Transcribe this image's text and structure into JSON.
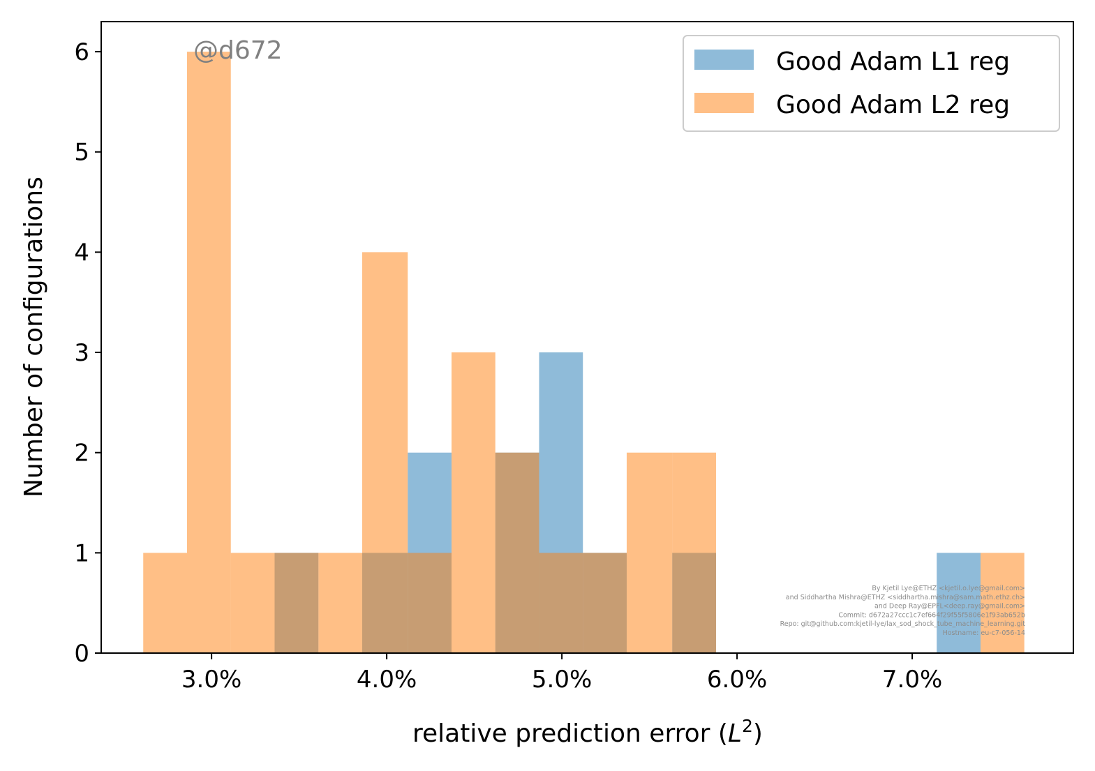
{
  "chart_data": {
    "type": "bar",
    "xlabel_text": "relative prediction error (",
    "xlabel_math": "L",
    "xlabel_sup": "2",
    "xlabel_close": ")",
    "ylabel": "Number of configurations",
    "xlim": [
      0.0237,
      0.0792
    ],
    "ylim": [
      0,
      6.3
    ],
    "xticks": [
      {
        "value": 0.03,
        "label": "3.0%"
      },
      {
        "value": 0.04,
        "label": "4.0%"
      },
      {
        "value": 0.05,
        "label": "5.0%"
      },
      {
        "value": 0.06,
        "label": "6.0%"
      },
      {
        "value": 0.07,
        "label": "7.0%"
      }
    ],
    "yticks": [
      0,
      1,
      2,
      3,
      4,
      5,
      6
    ],
    "grid": false,
    "legend_position": "top-right",
    "series": [
      {
        "name": "Good Adam L1 reg",
        "color": "#1f77b4",
        "opacity": 0.5,
        "bin_edges": [
          0.0336,
          0.0361,
          0.0386,
          0.0412,
          0.0437,
          0.0462,
          0.0487,
          0.0512,
          0.0537,
          0.0563,
          0.0588,
          0.0613,
          0.0638,
          0.0663,
          0.0688,
          0.0714,
          0.0739
        ],
        "counts": [
          1,
          0,
          1,
          2,
          0,
          2,
          3,
          1,
          0,
          1,
          0,
          0,
          0,
          0,
          0,
          1
        ]
      },
      {
        "name": "Good Adam L2 reg",
        "color": "#ff7f0e",
        "opacity": 0.5,
        "bin_edges": [
          0.0261,
          0.0286,
          0.0311,
          0.0336,
          0.0361,
          0.0386,
          0.0412,
          0.0437,
          0.0462,
          0.0487,
          0.0512,
          0.0537,
          0.0563,
          0.0588,
          0.0613,
          0.0638,
          0.0663,
          0.0688,
          0.0714,
          0.0739,
          0.0764
        ],
        "counts": [
          1,
          6,
          1,
          1,
          1,
          4,
          1,
          3,
          2,
          1,
          1,
          2,
          2,
          0,
          0,
          0,
          0,
          0,
          0,
          1
        ]
      }
    ]
  },
  "watermark": "@d672",
  "credits": [
    "By Kjetil Lye@ETHZ <kjetil.o.lye@gmail.com>",
    "and Siddhartha Mishra@ETHZ <siddhartha.mishra@sam.math.ethz.ch>",
    "and Deep Ray@EPFL<deep.ray@gmail.com>",
    "Commit: d672a27ccc1c7ef664f29f55f5806e1f93ab652b",
    "Repo: git@github.com:kjetil-lye/lax_sod_shock_tube_machine_learning.git",
    "Hostname: eu-c7-056-14"
  ]
}
